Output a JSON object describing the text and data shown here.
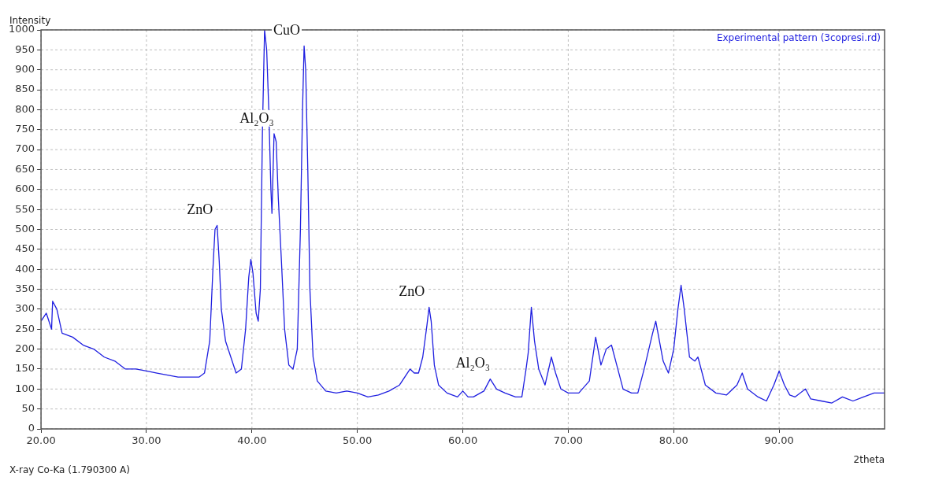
{
  "chart_data": {
    "type": "line",
    "ylabel": "Intensity",
    "xlabel": "2theta",
    "annotations": [
      "X-ray Co-Ka (1.790300 A)",
      {
        "text": "ZnO",
        "x": 36.7,
        "y": 510
      },
      {
        "text": "Al₂O₃",
        "x": 42.1,
        "y": 740
      },
      {
        "text": "CuO",
        "x": 44.95,
        "y": 960
      },
      {
        "text": "ZnO",
        "x": 56.8,
        "y": 305
      },
      {
        "text": "Al₂O₃",
        "x": 62.6,
        "y": 125
      }
    ],
    "xlim": [
      20,
      100
    ],
    "ylim": [
      0,
      1000
    ],
    "xticks": [
      {
        "value": 20,
        "label": "20.00"
      },
      {
        "value": 30,
        "label": "30.00"
      },
      {
        "value": 40,
        "label": "40.00"
      },
      {
        "value": 50,
        "label": "50.00"
      },
      {
        "value": 60,
        "label": "60.00"
      },
      {
        "value": 70,
        "label": "70.00"
      },
      {
        "value": 80,
        "label": "80.00"
      },
      {
        "value": 90,
        "label": "90.00"
      }
    ],
    "yticks": [
      0,
      50,
      100,
      150,
      200,
      250,
      300,
      350,
      400,
      450,
      500,
      550,
      600,
      650,
      700,
      750,
      800,
      850,
      900,
      950,
      1000
    ],
    "grid": true,
    "legend": "top right",
    "marker": "none",
    "line_style": "solid",
    "series": [
      {
        "name": "Experimental pattern (3copresi.rd)",
        "color": "#1f1fe0",
        "x": [
          20,
          20.5,
          21,
          21.1,
          21.5,
          22,
          23,
          24,
          25,
          26,
          27,
          28,
          29,
          30,
          31,
          32,
          33,
          34,
          35,
          35.5,
          36,
          36.3,
          36.5,
          36.7,
          36.9,
          37.1,
          37.5,
          38,
          38.5,
          39,
          39.4,
          39.7,
          39.9,
          40.1,
          40.4,
          40.6,
          40.8,
          41,
          41.2,
          41.4,
          41.6,
          41.8,
          41.9,
          42.1,
          42.3,
          42.5,
          42.8,
          43.1,
          43.5,
          43.9,
          44.3,
          44.6,
          44.8,
          44.95,
          45.1,
          45.3,
          45.5,
          45.8,
          46.2,
          47,
          48,
          49,
          50,
          51,
          52,
          53,
          54,
          55,
          55.4,
          55.8,
          56.2,
          56.6,
          56.8,
          57,
          57.3,
          57.7,
          58.5,
          59.5,
          60,
          60.5,
          61,
          62,
          62.6,
          63.2,
          64,
          65,
          65.6,
          66,
          66.2,
          66.5,
          66.8,
          67.2,
          67.8,
          68.4,
          68.8,
          69.3,
          70,
          71,
          72,
          72.6,
          73.1,
          73.6,
          74.1,
          74.6,
          75.2,
          76,
          76.6,
          77.2,
          78,
          78.3,
          79,
          79.5,
          80,
          80.4,
          80.7,
          81,
          81.5,
          82,
          82.3,
          83,
          84,
          85,
          86,
          86.5,
          87,
          88,
          88.8,
          89.5,
          90,
          90.5,
          91,
          91.5,
          92.5,
          93,
          94,
          95,
          96,
          97,
          98,
          99,
          100
        ],
        "values": [
          270,
          290,
          250,
          320,
          300,
          240,
          230,
          210,
          200,
          180,
          170,
          150,
          150,
          145,
          140,
          135,
          130,
          130,
          130,
          140,
          220,
          400,
          500,
          510,
          420,
          300,
          220,
          180,
          140,
          150,
          250,
          380,
          425,
          390,
          290,
          270,
          350,
          750,
          1000,
          950,
          800,
          600,
          540,
          740,
          720,
          580,
          420,
          250,
          160,
          150,
          200,
          500,
          800,
          960,
          900,
          650,
          350,
          180,
          120,
          95,
          90,
          95,
          90,
          80,
          85,
          95,
          110,
          150,
          140,
          140,
          180,
          260,
          305,
          270,
          160,
          110,
          90,
          80,
          95,
          80,
          80,
          95,
          125,
          100,
          90,
          80,
          80,
          150,
          190,
          305,
          220,
          150,
          110,
          180,
          140,
          100,
          90,
          90,
          120,
          230,
          160,
          200,
          210,
          160,
          100,
          90,
          90,
          150,
          240,
          270,
          170,
          140,
          200,
          300,
          360,
          300,
          180,
          170,
          180,
          110,
          90,
          85,
          110,
          140,
          100,
          80,
          70,
          110,
          145,
          110,
          85,
          80,
          100,
          75,
          70,
          65,
          80,
          70,
          80,
          90,
          90
        ]
      }
    ]
  }
}
